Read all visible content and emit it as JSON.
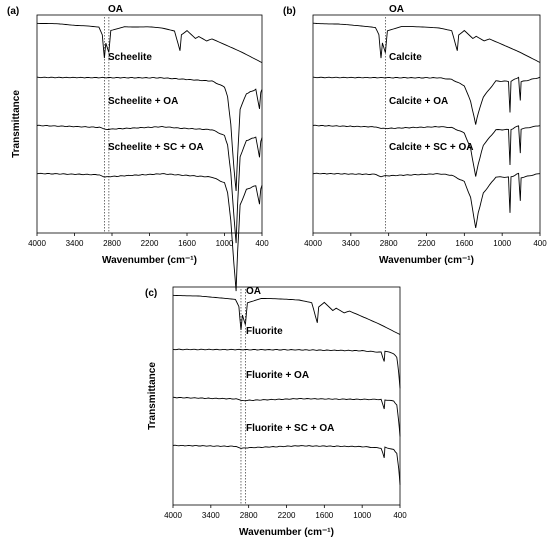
{
  "chart_data": [
    {
      "type": "line",
      "panel_label": "(a)",
      "xlabel": "Wavenumber (cm⁻¹)",
      "ylabel": "Transmittance",
      "x_ticks": [
        "4000",
        "3400",
        "2800",
        "2200",
        "1600",
        "1000",
        "400"
      ],
      "xlim": [
        4000,
        400
      ],
      "x_reversed": true,
      "y_ticks_shown": false,
      "reference_lines_x": [
        2920,
        2850
      ],
      "series": [
        {
          "name": "OA",
          "color": "#000000",
          "offset": 0.0,
          "points": [
            [
              4000,
              0
            ],
            [
              3600,
              -0.003
            ],
            [
              3200,
              -0.008
            ],
            [
              3010,
              -0.012
            ],
            [
              2955,
              -0.03
            ],
            [
              2922,
              -0.09
            ],
            [
              2900,
              -0.05
            ],
            [
              2852,
              -0.075
            ],
            [
              2820,
              -0.02
            ],
            [
              2600,
              -0.01
            ],
            [
              2200,
              -0.01
            ],
            [
              2000,
              -0.012
            ],
            [
              1800,
              -0.02
            ],
            [
              1712,
              -0.07
            ],
            [
              1690,
              -0.03
            ],
            [
              1600,
              -0.02
            ],
            [
              1465,
              -0.04
            ],
            [
              1412,
              -0.035
            ],
            [
              1285,
              -0.045
            ],
            [
              1200,
              -0.04
            ],
            [
              940,
              -0.06
            ],
            [
              720,
              -0.075
            ],
            [
              400,
              -0.1
            ]
          ]
        },
        {
          "name": "Scheelite",
          "color": "#000000",
          "offset": 0.25,
          "points": [
            [
              4000,
              0
            ],
            [
              2000,
              -0.002
            ],
            [
              1200,
              -0.01
            ],
            [
              1000,
              -0.025
            ],
            [
              950,
              -0.05
            ],
            [
              900,
              -0.12
            ],
            [
              850,
              -0.23
            ],
            [
              815,
              -0.29
            ],
            [
              790,
              -0.2
            ],
            [
              750,
              -0.08
            ],
            [
              650,
              -0.04
            ],
            [
              500,
              -0.03
            ],
            [
              440,
              -0.08
            ],
            [
              420,
              -0.04
            ],
            [
              400,
              -0.03
            ]
          ]
        },
        {
          "name": "Scheelite + OA",
          "color": "#000000",
          "offset": 0.47,
          "points": [
            [
              4000,
              0
            ],
            [
              3000,
              -0.004
            ],
            [
              2922,
              -0.01
            ],
            [
              2852,
              -0.009
            ],
            [
              2000,
              -0.002
            ],
            [
              1710,
              -0.006
            ],
            [
              1200,
              -0.01
            ],
            [
              1000,
              -0.025
            ],
            [
              950,
              -0.05
            ],
            [
              900,
              -0.12
            ],
            [
              850,
              -0.23
            ],
            [
              815,
              -0.3
            ],
            [
              790,
              -0.2
            ],
            [
              750,
              -0.08
            ],
            [
              650,
              -0.04
            ],
            [
              500,
              -0.03
            ],
            [
              440,
              -0.08
            ],
            [
              420,
              -0.04
            ],
            [
              400,
              -0.03
            ]
          ]
        },
        {
          "name": "Scheelite + SC + OA",
          "color": "#000000",
          "offset": 0.69,
          "points": [
            [
              4000,
              0
            ],
            [
              3000,
              -0.004
            ],
            [
              2922,
              -0.01
            ],
            [
              2852,
              -0.009
            ],
            [
              2000,
              -0.002
            ],
            [
              1200,
              -0.01
            ],
            [
              1000,
              -0.025
            ],
            [
              950,
              -0.05
            ],
            [
              900,
              -0.12
            ],
            [
              850,
              -0.23
            ],
            [
              815,
              -0.3
            ],
            [
              790,
              -0.2
            ],
            [
              750,
              -0.08
            ],
            [
              650,
              -0.04
            ],
            [
              500,
              -0.03
            ],
            [
              440,
              -0.08
            ],
            [
              420,
              -0.04
            ],
            [
              400,
              -0.03
            ]
          ]
        }
      ]
    },
    {
      "type": "line",
      "panel_label": "(b)",
      "xlabel": "Wavenumber (cm⁻¹)",
      "ylabel": "",
      "x_ticks": [
        "4000",
        "3400",
        "2800",
        "2200",
        "1600",
        "1000",
        "400"
      ],
      "xlim": [
        4000,
        400
      ],
      "x_reversed": true,
      "y_ticks_shown": false,
      "reference_lines_x": [
        2850
      ],
      "series": [
        {
          "name": "OA",
          "color": "#000000",
          "offset": 0.0,
          "points": [
            [
              4000,
              0
            ],
            [
              3600,
              -0.003
            ],
            [
              3200,
              -0.008
            ],
            [
              3010,
              -0.012
            ],
            [
              2955,
              -0.03
            ],
            [
              2922,
              -0.09
            ],
            [
              2900,
              -0.05
            ],
            [
              2852,
              -0.075
            ],
            [
              2820,
              -0.02
            ],
            [
              2600,
              -0.01
            ],
            [
              2200,
              -0.01
            ],
            [
              2000,
              -0.012
            ],
            [
              1800,
              -0.02
            ],
            [
              1712,
              -0.07
            ],
            [
              1690,
              -0.03
            ],
            [
              1600,
              -0.02
            ],
            [
              1465,
              -0.04
            ],
            [
              1412,
              -0.035
            ],
            [
              1285,
              -0.045
            ],
            [
              1200,
              -0.04
            ],
            [
              940,
              -0.06
            ],
            [
              720,
              -0.075
            ],
            [
              400,
              -0.1
            ]
          ]
        },
        {
          "name": "Calcite",
          "color": "#000000",
          "offset": 0.25,
          "points": [
            [
              4000,
              0
            ],
            [
              2600,
              0
            ],
            [
              2000,
              -0.002
            ],
            [
              1800,
              -0.005
            ],
            [
              1600,
              -0.02
            ],
            [
              1500,
              -0.06
            ],
            [
              1420,
              -0.12
            ],
            [
              1380,
              -0.09
            ],
            [
              1300,
              -0.05
            ],
            [
              1100,
              -0.01
            ],
            [
              900,
              -0.01
            ],
            [
              876,
              -0.09
            ],
            [
              860,
              -0.01
            ],
            [
              740,
              0
            ],
            [
              712,
              -0.06
            ],
            [
              700,
              -0.01
            ],
            [
              400,
              0
            ]
          ]
        },
        {
          "name": "Calcite + OA",
          "color": "#000000",
          "offset": 0.47,
          "points": [
            [
              4000,
              0
            ],
            [
              3000,
              -0.003
            ],
            [
              2922,
              -0.008
            ],
            [
              2852,
              -0.007
            ],
            [
              2000,
              -0.002
            ],
            [
              1800,
              -0.005
            ],
            [
              1600,
              -0.02
            ],
            [
              1500,
              -0.06
            ],
            [
              1420,
              -0.13
            ],
            [
              1380,
              -0.1
            ],
            [
              1300,
              -0.05
            ],
            [
              1100,
              -0.01
            ],
            [
              900,
              -0.01
            ],
            [
              876,
              -0.1
            ],
            [
              860,
              -0.01
            ],
            [
              740,
              0
            ],
            [
              712,
              -0.07
            ],
            [
              700,
              -0.01
            ],
            [
              400,
              0
            ]
          ]
        },
        {
          "name": "Calcite + SC + OA",
          "color": "#000000",
          "offset": 0.69,
          "points": [
            [
              4000,
              0
            ],
            [
              3000,
              -0.003
            ],
            [
              2922,
              -0.008
            ],
            [
              2852,
              -0.007
            ],
            [
              2000,
              -0.002
            ],
            [
              1800,
              -0.005
            ],
            [
              1600,
              -0.02
            ],
            [
              1500,
              -0.06
            ],
            [
              1420,
              -0.14
            ],
            [
              1380,
              -0.1
            ],
            [
              1300,
              -0.05
            ],
            [
              1100,
              -0.01
            ],
            [
              900,
              -0.01
            ],
            [
              876,
              -0.1
            ],
            [
              860,
              -0.01
            ],
            [
              740,
              0
            ],
            [
              712,
              -0.07
            ],
            [
              700,
              -0.01
            ],
            [
              400,
              0
            ]
          ]
        }
      ]
    },
    {
      "type": "line",
      "panel_label": "(c)",
      "xlabel": "Wavenumber (cm⁻¹)",
      "ylabel": "Transmittance",
      "x_ticks": [
        "4000",
        "3400",
        "2800",
        "2200",
        "1600",
        "1000",
        "400"
      ],
      "xlim": [
        4000,
        400
      ],
      "x_reversed": true,
      "y_ticks_shown": false,
      "reference_lines_x": [
        2922,
        2852
      ],
      "series": [
        {
          "name": "OA",
          "color": "#000000",
          "offset": 0.0,
          "points": [
            [
              4000,
              0
            ],
            [
              3600,
              -0.003
            ],
            [
              3200,
              -0.008
            ],
            [
              3010,
              -0.012
            ],
            [
              2955,
              -0.03
            ],
            [
              2922,
              -0.09
            ],
            [
              2900,
              -0.05
            ],
            [
              2852,
              -0.075
            ],
            [
              2820,
              -0.02
            ],
            [
              2600,
              -0.01
            ],
            [
              2200,
              -0.01
            ],
            [
              2000,
              -0.012
            ],
            [
              1800,
              -0.02
            ],
            [
              1712,
              -0.07
            ],
            [
              1690,
              -0.03
            ],
            [
              1600,
              -0.02
            ],
            [
              1465,
              -0.04
            ],
            [
              1412,
              -0.035
            ],
            [
              1285,
              -0.045
            ],
            [
              1200,
              -0.04
            ],
            [
              940,
              -0.06
            ],
            [
              720,
              -0.075
            ],
            [
              400,
              -0.1
            ]
          ]
        },
        {
          "name": "Fluorite",
          "color": "#000000",
          "offset": 0.25,
          "points": [
            [
              4000,
              0
            ],
            [
              2000,
              -0.002
            ],
            [
              1000,
              -0.004
            ],
            [
              700,
              -0.006
            ],
            [
              650,
              -0.03
            ],
            [
              640,
              -0.005
            ],
            [
              500,
              -0.01
            ],
            [
              450,
              -0.02
            ],
            [
              420,
              -0.06
            ],
            [
              400,
              -0.1
            ]
          ]
        },
        {
          "name": "Fluorite + OA",
          "color": "#000000",
          "offset": 0.47,
          "points": [
            [
              4000,
              0
            ],
            [
              3000,
              -0.003
            ],
            [
              2922,
              -0.008
            ],
            [
              2852,
              -0.007
            ],
            [
              2000,
              -0.002
            ],
            [
              1000,
              -0.004
            ],
            [
              700,
              -0.006
            ],
            [
              650,
              -0.03
            ],
            [
              640,
              -0.005
            ],
            [
              500,
              -0.01
            ],
            [
              450,
              -0.02
            ],
            [
              420,
              -0.06
            ],
            [
              400,
              -0.1
            ]
          ]
        },
        {
          "name": "Fluorite + SC + OA",
          "color": "#000000",
          "offset": 0.69,
          "points": [
            [
              4000,
              0
            ],
            [
              3000,
              -0.003
            ],
            [
              2922,
              -0.008
            ],
            [
              2852,
              -0.007
            ],
            [
              2000,
              -0.002
            ],
            [
              1000,
              -0.004
            ],
            [
              700,
              -0.006
            ],
            [
              650,
              -0.03
            ],
            [
              640,
              -0.005
            ],
            [
              500,
              -0.01
            ],
            [
              450,
              -0.02
            ],
            [
              420,
              -0.06
            ],
            [
              400,
              -0.1
            ]
          ]
        }
      ]
    }
  ]
}
